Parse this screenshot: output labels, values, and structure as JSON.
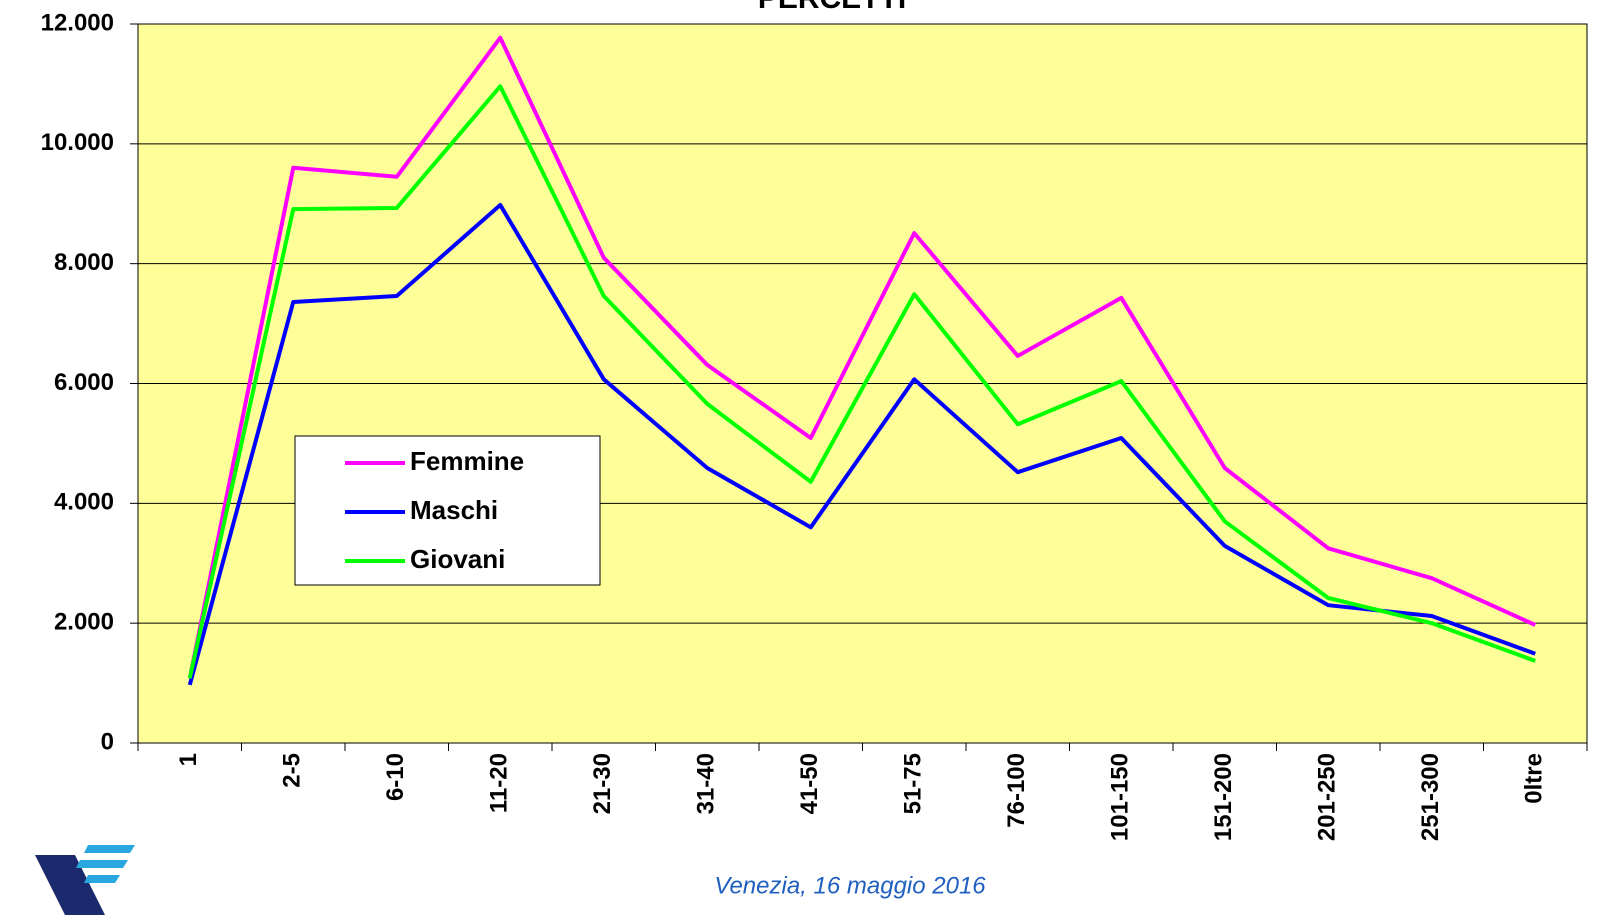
{
  "chart_data": {
    "type": "line",
    "title": "PERCETTI",
    "footer": "Venezia, 16 maggio 2016",
    "categories": [
      "1",
      "2-5",
      "6-10",
      "11-20",
      "21-30",
      "31-40",
      "41-50",
      "51-75",
      "76-100",
      "101-150",
      "151-200",
      "201-250",
      "251-300",
      "0ltre"
    ],
    "series": [
      {
        "name": "Femmine",
        "color": "#ff00ff",
        "values": [
          1080,
          9600,
          9450,
          11770,
          8100,
          6310,
          5090,
          8510,
          6460,
          7430,
          4590,
          3250,
          2750,
          1970
        ]
      },
      {
        "name": "Maschi",
        "color": "#0000ff",
        "values": [
          970,
          7360,
          7460,
          8980,
          6070,
          4590,
          3600,
          6070,
          4520,
          5090,
          3290,
          2300,
          2120,
          1490
        ]
      },
      {
        "name": "Giovani",
        "color": "#00ff00",
        "values": [
          1080,
          8910,
          8930,
          10960,
          7460,
          5660,
          4360,
          7490,
          5320,
          6040,
          3700,
          2420,
          2000,
          1370
        ]
      }
    ],
    "ylim": [
      0,
      12000
    ],
    "yticks": [
      0,
      {
        "value": 2000,
        "label": "2.000"
      },
      {
        "value": 4000,
        "label": "4.000"
      },
      {
        "value": 6000,
        "label": "6.000"
      },
      {
        "value": 8000,
        "label": "8.000"
      },
      {
        "value": 10000,
        "label": "10.000"
      },
      {
        "value": 12000,
        "label": "12.000"
      }
    ],
    "grid": true,
    "plot_background": "#ffff99"
  }
}
